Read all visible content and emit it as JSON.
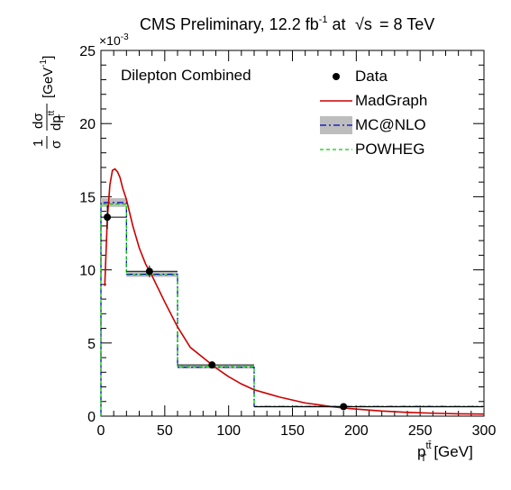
{
  "chart_data": {
    "type": "line",
    "title": "CMS Preliminary, 12.2 fb",
    "title_sup": "-1",
    "title_tail": "at",
    "sqrt_s_symbol": "√s",
    "energy_text": "=  8 TeV",
    "exponent_label": "×10",
    "exponent_sup": "-3",
    "channel_label": "Dilepton Combined",
    "xlabel": "p",
    "xlabel_sup": "tt̄",
    "xlabel_sub": "T",
    "xlabel_unit": "[GeV]",
    "ylabel_fraction_num": "1",
    "ylabel_fraction_den": "σ",
    "ylabel_diff_num": "dσ",
    "ylabel_diff_den": "dp",
    "ylabel_diff_den_sup": "tt̄",
    "ylabel_diff_den_sub": "T",
    "ylabel_unit": "[GeV",
    "ylabel_unit_sup": "-1",
    "ylabel_unit_close": "]",
    "xlim": [
      0,
      300
    ],
    "ylim": [
      0,
      25
    ],
    "x_ticks": [
      "0",
      "50",
      "100",
      "150",
      "200",
      "250",
      "300"
    ],
    "y_ticks": [
      "0",
      "5",
      "10",
      "15",
      "20",
      "25"
    ],
    "bin_edges": [
      0,
      20,
      60,
      120,
      300
    ],
    "legend_position": "top-right",
    "series": [
      {
        "name": "Data",
        "kind": "points",
        "color": "#000000",
        "x": [
          5,
          38,
          87,
          190
        ],
        "y": [
          13.6,
          9.9,
          3.5,
          0.65
        ],
        "yerr": [
          0.8,
          0.4,
          0.15,
          0.06
        ],
        "xerr_lo": [
          5,
          18,
          27,
          70
        ],
        "xerr_hi": [
          15,
          22,
          33,
          110
        ]
      },
      {
        "name": "MadGraph",
        "kind": "curve",
        "color": "#cc0000",
        "x": [
          3,
          5,
          7,
          9,
          11,
          13,
          15,
          17,
          20,
          25,
          30,
          35,
          40,
          50,
          60,
          70,
          80,
          90,
          100,
          110,
          120,
          130,
          140,
          150,
          160,
          170,
          180,
          190,
          200,
          220,
          240,
          260,
          280,
          300
        ],
        "y": [
          8.9,
          13.5,
          15.8,
          16.8,
          16.9,
          16.7,
          16.3,
          15.6,
          14.8,
          13.0,
          11.5,
          10.4,
          9.6,
          7.8,
          6.1,
          4.7,
          4.0,
          3.3,
          2.7,
          2.2,
          1.8,
          1.55,
          1.3,
          1.1,
          0.9,
          0.78,
          0.66,
          0.56,
          0.48,
          0.35,
          0.26,
          0.2,
          0.16,
          0.14
        ]
      },
      {
        "name": "MC@NLO",
        "kind": "histogram",
        "color": "#0000cc",
        "band_color": "#bdbdbd",
        "values": [
          14.6,
          9.7,
          3.35,
          0.67
        ],
        "band": [
          0.3,
          0.18,
          0.1,
          0.03
        ]
      },
      {
        "name": "POWHEG",
        "kind": "histogram",
        "color": "#00cc00",
        "values": [
          14.5,
          9.65,
          3.38,
          0.66
        ]
      }
    ]
  }
}
